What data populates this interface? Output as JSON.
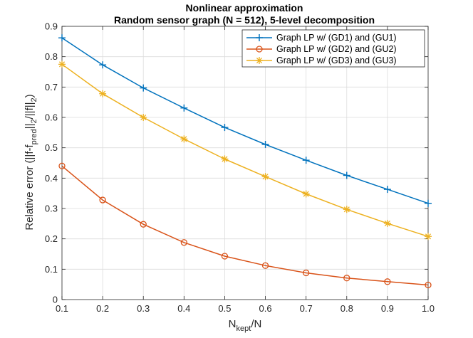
{
  "chart_data": {
    "type": "line",
    "title_line1": "Nonlinear approximation",
    "title_line2": "Random sensor graph  (N = 512), 5-level decomposition",
    "xlabel": {
      "main": "N",
      "sub": "kept",
      "tail": "/N"
    },
    "ylabel": {
      "p1": "Relative error (||f-f",
      "s1": "pred",
      "p2": "||",
      "s2": "2",
      "p3": "/||f||",
      "s3": "2",
      "p4": ")"
    },
    "x": [
      0.1,
      0.2,
      0.3,
      0.4,
      0.5,
      0.6,
      0.7,
      0.8,
      0.9,
      1.0
    ],
    "xlim": [
      0.1,
      1.0
    ],
    "ylim": [
      0,
      0.9
    ],
    "xticks": [
      "0.1",
      "0.2",
      "0.3",
      "0.4",
      "0.5",
      "0.6",
      "0.7",
      "0.8",
      "0.9",
      "1.0"
    ],
    "yticks": [
      "0",
      "0.1",
      "0.2",
      "0.3",
      "0.4",
      "0.5",
      "0.6",
      "0.7",
      "0.8",
      "0.9"
    ],
    "xtick_values": [
      0.1,
      0.2,
      0.3,
      0.4,
      0.5,
      0.6,
      0.7,
      0.8,
      0.9,
      1.0
    ],
    "ytick_values": [
      0,
      0.1,
      0.2,
      0.3,
      0.4,
      0.5,
      0.6,
      0.7,
      0.8,
      0.9
    ],
    "grid": true,
    "legend_position": "top-right",
    "series": [
      {
        "name": "Graph LP w/ (GD1) and (GU1)",
        "color": "#0072BD",
        "marker": "plus",
        "values": [
          0.862,
          0.773,
          0.697,
          0.631,
          0.567,
          0.511,
          0.459,
          0.409,
          0.363,
          0.317
        ]
      },
      {
        "name": "Graph LP w/ (GD2) and (GU2)",
        "color": "#D95319",
        "marker": "circle",
        "values": [
          0.44,
          0.328,
          0.248,
          0.188,
          0.143,
          0.112,
          0.088,
          0.071,
          0.059,
          0.048
        ]
      },
      {
        "name": "Graph LP w/ (GD3) and (GU3)",
        "color": "#EDB120",
        "marker": "star",
        "values": [
          0.775,
          0.678,
          0.6,
          0.529,
          0.463,
          0.405,
          0.348,
          0.297,
          0.251,
          0.208
        ]
      }
    ]
  }
}
